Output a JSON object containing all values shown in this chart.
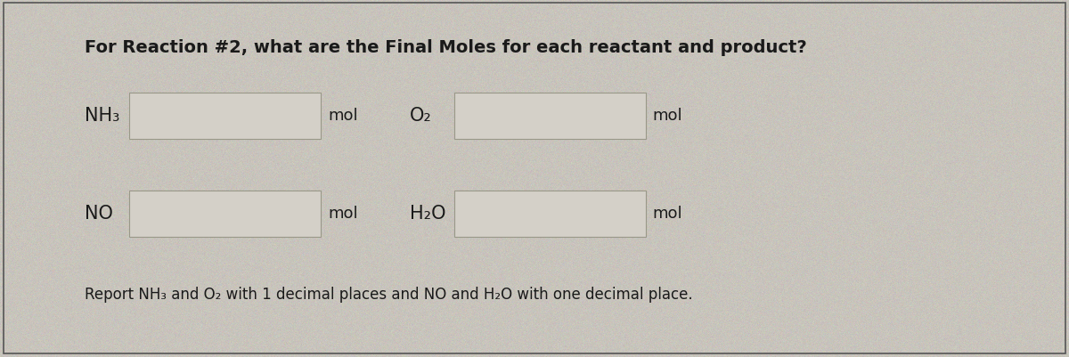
{
  "title": "For Reaction #2, what are the Final Moles for each reactant and product?",
  "title_fontsize": 14,
  "background_color": "#c8c4bc",
  "box_facecolor": "#d4d0c8",
  "box_edgecolor": "#999888",
  "text_color": "#1a1a1a",
  "border_color": "#555555",
  "footer_text": "Report NH₃ and O₂ with 1 decimal places and NO and H₂O with one decimal place.",
  "footer_fontsize": 12,
  "rows": [
    {
      "label1": "NH₃",
      "label1_sub": false,
      "label2": "O₂",
      "label2_sub": false
    },
    {
      "label1": "NO",
      "label1_sub": false,
      "label2": "H₂O",
      "label2_sub": false
    }
  ]
}
